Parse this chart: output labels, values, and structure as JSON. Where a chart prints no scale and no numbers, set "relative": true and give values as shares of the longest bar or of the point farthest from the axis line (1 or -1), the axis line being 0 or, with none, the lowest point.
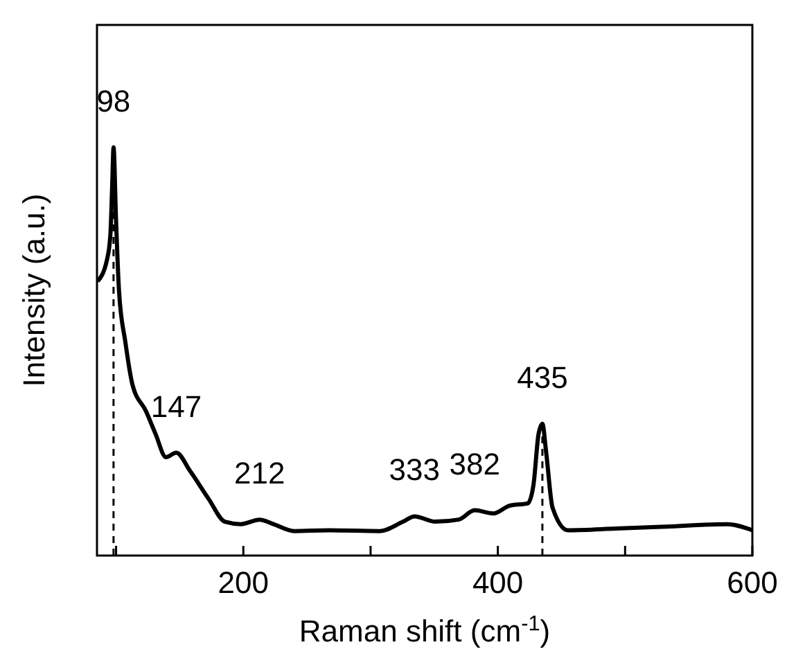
{
  "chart_data": {
    "type": "line",
    "xlabel": "Raman shift (cm$^{-1}$)",
    "ylabel": "Intensity (a.u.)",
    "relative": true,
    "xlim": [
      85,
      600
    ],
    "xticks": [
      {
        "value": 100,
        "label": null
      },
      200,
      {
        "value": 300,
        "label": null
      },
      400,
      {
        "value": 500,
        "label": null
      },
      600
    ],
    "grid": false,
    "marker": "none",
    "line_style": "solid",
    "series": [
      {
        "color": "#000000",
        "x": [
          85.5,
          92.8,
          95.5,
          97,
          98,
          100,
          102.3,
          107.3,
          112.7,
          123.6,
          130.9,
          139.2,
          147.3,
          158.2,
          172.7,
          185.5,
          198.1,
          212.8,
          223.7,
          240,
          267.3,
          307.2,
          325.5,
          334.5,
          350.9,
          369.1,
          381.8,
          396.4,
          409.1,
          423.6,
          428,
          432,
          435,
          438,
          443,
          455,
          492.7,
          532.7,
          580,
          600
        ],
        "values": [
          0.672,
          0.724,
          0.785,
          0.911,
          1.0,
          0.819,
          0.649,
          0.523,
          0.421,
          0.353,
          0.299,
          0.241,
          0.252,
          0.207,
          0.139,
          0.083,
          0.077,
          0.088,
          0.077,
          0.06,
          0.062,
          0.06,
          0.083,
          0.096,
          0.083,
          0.088,
          0.111,
          0.103,
          0.122,
          0.128,
          0.173,
          0.298,
          0.323,
          0.252,
          0.117,
          0.062,
          0.066,
          0.071,
          0.077,
          0.062
        ]
      }
    ],
    "ref_lines": [
      {
        "axis": "x",
        "value": 98,
        "line_style": "dashed",
        "color": "#000000"
      },
      {
        "axis": "x",
        "value": 435,
        "line_style": "dashed",
        "color": "#000000"
      }
    ],
    "annotations": [
      {
        "text": "98",
        "x": 98,
        "y": 1.0
      },
      {
        "text": "147",
        "x": 147.3,
        "y": 0.252
      },
      {
        "text": "212",
        "x": 212.8,
        "y": 0.088
      },
      {
        "text": "333",
        "x": 334.5,
        "y": 0.096
      },
      {
        "text": "382",
        "x": 381.8,
        "y": 0.111
      },
      {
        "text": "435",
        "x": 435,
        "y": 0.323
      }
    ]
  }
}
